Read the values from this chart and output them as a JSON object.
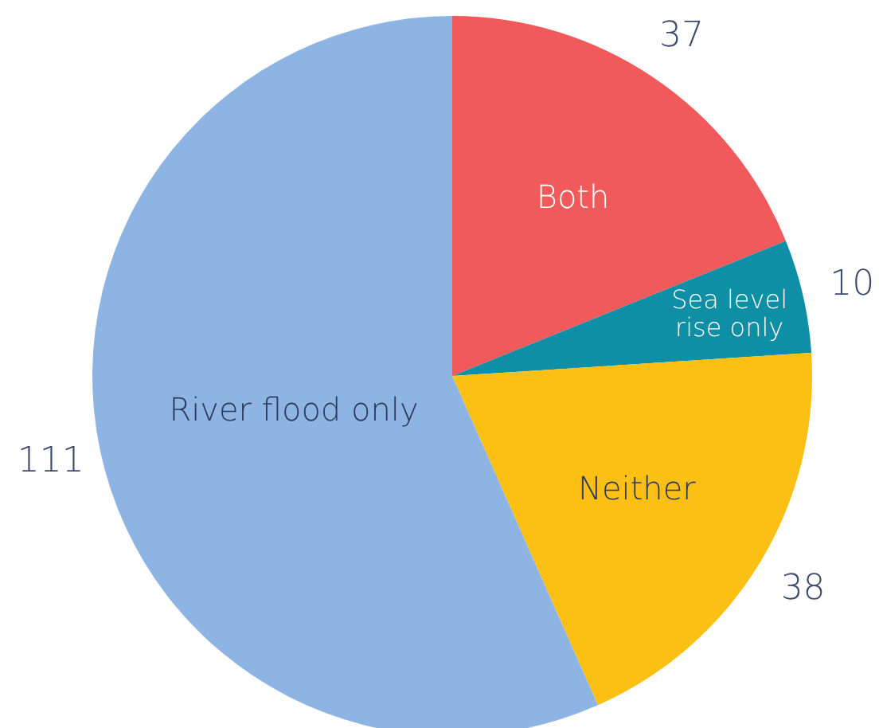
{
  "chart_data": {
    "type": "pie",
    "categories": [
      "Both",
      "Sea level rise only",
      "Neither",
      "River flood only"
    ],
    "values": [
      37,
      10,
      38,
      111
    ],
    "colors": [
      "#f05a5a",
      "#0f8fa5",
      "#fcbf14",
      "#8db4e2"
    ],
    "data_labels": true
  }
}
